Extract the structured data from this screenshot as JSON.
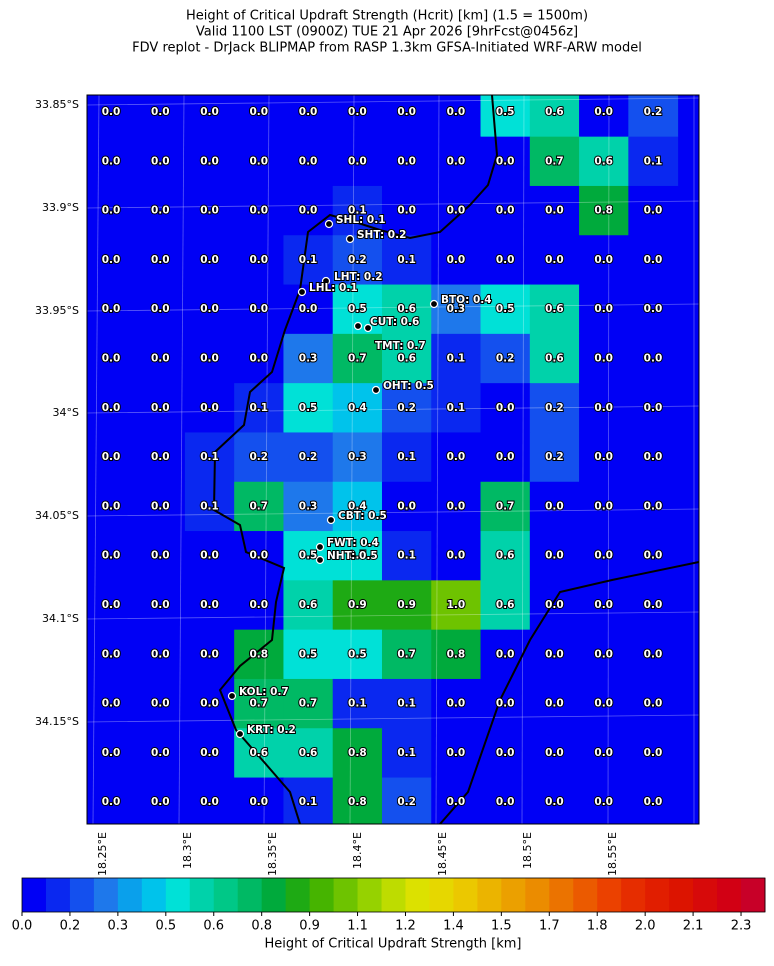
{
  "title_lines": [
    "Height of Critical Updraft Strength (Hcrit) [km] (1.5 = 1500m)",
    "Valid 1100 LST (0900Z) TUE 21 Apr 2026 [9hrFcst@0456z]",
    "FDV replot - DrJack BLIPMAP from RASP 1.3km GFSA-Initiated WRF-ARW model"
  ],
  "grid": {
    "rows": [
      [
        "0.0",
        "0.0",
        "0.0",
        "0.0",
        "0.0",
        "0.0",
        "0.0",
        "0.0",
        "0.5",
        "0.6",
        "0.0",
        "0.2"
      ],
      [
        "0.0",
        "0.0",
        "0.0",
        "0.0",
        "0.0",
        "0.0",
        "0.0",
        "0.0",
        "0.0",
        "0.7",
        "0.6",
        "0.1"
      ],
      [
        "0.0",
        "0.0",
        "0.0",
        "0.0",
        "0.0",
        "0.1",
        "0.0",
        "0.0",
        "0.0",
        "0.0",
        "0.8",
        "0.0"
      ],
      [
        "0.0",
        "0.0",
        "0.0",
        "0.0",
        "0.1",
        "0.2",
        "0.1",
        "0.0",
        "0.0",
        "0.0",
        "0.0",
        "0.0"
      ],
      [
        "0.0",
        "0.0",
        "0.0",
        "0.0",
        "0.0",
        "0.5",
        "0.6",
        "0.3",
        "0.5",
        "0.6",
        "0.0",
        "0.0"
      ],
      [
        "0.0",
        "0.0",
        "0.0",
        "0.0",
        "0.3",
        "0.7",
        "0.6",
        "0.1",
        "0.2",
        "0.6",
        "0.0",
        "0.0"
      ],
      [
        "0.0",
        "0.0",
        "0.0",
        "0.1",
        "0.5",
        "0.4",
        "0.2",
        "0.1",
        "0.0",
        "0.2",
        "0.0",
        "0.0"
      ],
      [
        "0.0",
        "0.0",
        "0.1",
        "0.2",
        "0.2",
        "0.3",
        "0.1",
        "0.0",
        "0.0",
        "0.2",
        "0.0",
        "0.0"
      ],
      [
        "0.0",
        "0.0",
        "0.1",
        "0.7",
        "0.3",
        "0.4",
        "0.0",
        "0.0",
        "0.7",
        "0.0",
        "0.0",
        "0.0"
      ],
      [
        "0.0",
        "0.0",
        "0.0",
        "0.0",
        "0.5",
        "0.5",
        "0.1",
        "0.0",
        "0.6",
        "0.0",
        "0.0",
        "0.0"
      ],
      [
        "0.0",
        "0.0",
        "0.0",
        "0.0",
        "0.6",
        "0.9",
        "0.9",
        "1.0",
        "0.6",
        "0.0",
        "0.0",
        "0.0"
      ],
      [
        "0.0",
        "0.0",
        "0.0",
        "0.8",
        "0.5",
        "0.5",
        "0.7",
        "0.8",
        "0.0",
        "0.0",
        "0.0",
        "0.0"
      ],
      [
        "0.0",
        "0.0",
        "0.0",
        "0.7",
        "0.7",
        "0.1",
        "0.1",
        "0.0",
        "0.0",
        "0.0",
        "0.0",
        "0.0"
      ],
      [
        "0.0",
        "0.0",
        "0.0",
        "0.6",
        "0.6",
        "0.8",
        "0.1",
        "0.0",
        "0.0",
        "0.0",
        "0.0",
        "0.0"
      ],
      [
        "0.0",
        "0.0",
        "0.0",
        "0.0",
        "0.1",
        "0.8",
        "0.2",
        "0.0",
        "0.0",
        "0.0",
        "0.0",
        "0.0"
      ]
    ]
  },
  "stations": [
    "SHL: 0.1",
    "SHT: 0.2",
    "LHT: 0.2",
    "LHL: 0.1",
    "BTO: 0.4",
    "CUT: 0.6",
    "TMT: 0.7",
    "OHT: 0.5",
    "CBT: 0.5",
    "FWT: 0.4",
    "NHT: 0.5",
    "KOL: 0.7",
    "KRT: 0.2"
  ],
  "lat_labels": [
    "33.85°S",
    "33.9°S",
    "33.95°S",
    "34°S",
    "34.05°S",
    "34.1°S",
    "34.15°S"
  ],
  "lon_labels": [
    "18.25°E",
    "18.3°E",
    "18.35°E",
    "18.4°E",
    "18.45°E",
    "18.5°E",
    "18.55°E"
  ],
  "colorbar": {
    "label": "Height of Critical Updraft Strength [km]",
    "lim": [
      0,
      2.325
    ],
    "ticks": [
      {
        "value": 0,
        "label": "0.0"
      },
      {
        "value": 0.15,
        "label": "0.2"
      },
      {
        "value": 0.3,
        "label": "0.3"
      },
      {
        "value": 0.45,
        "label": "0.5"
      },
      {
        "value": 0.6,
        "label": "0.6"
      },
      {
        "value": 0.75,
        "label": "0.8"
      },
      {
        "value": 0.9,
        "label": "0.9"
      },
      {
        "value": 1.05,
        "label": "1.1"
      },
      {
        "value": 1.2,
        "label": "1.2"
      },
      {
        "value": 1.35,
        "label": "1.4"
      },
      {
        "value": 1.5,
        "label": "1.5"
      },
      {
        "value": 1.65,
        "label": "1.7"
      },
      {
        "value": 1.8,
        "label": "1.8"
      },
      {
        "value": 1.95,
        "label": "2.0"
      },
      {
        "value": 2.1,
        "label": "2.1"
      },
      {
        "value": 2.25,
        "label": "2.3"
      }
    ],
    "colors": [
      "#0000f5",
      "#0a28f0",
      "#1450ee",
      "#1e78eb",
      "#0aa0eb",
      "#00c3eb",
      "#00e1d7",
      "#00d2aa",
      "#00c887",
      "#00b964",
      "#00aa3c",
      "#1eaa14",
      "#46b400",
      "#6ec300",
      "#96d200",
      "#bedc00",
      "#dce100",
      "#e6d700",
      "#ebc800",
      "#ebb400",
      "#eba000",
      "#eb8c00",
      "#eb7300",
      "#eb5a00",
      "#eb4100",
      "#e62d00",
      "#e11e00",
      "#dc1400",
      "#d70a0a",
      "#d20014",
      "#c80028"
    ]
  }
}
